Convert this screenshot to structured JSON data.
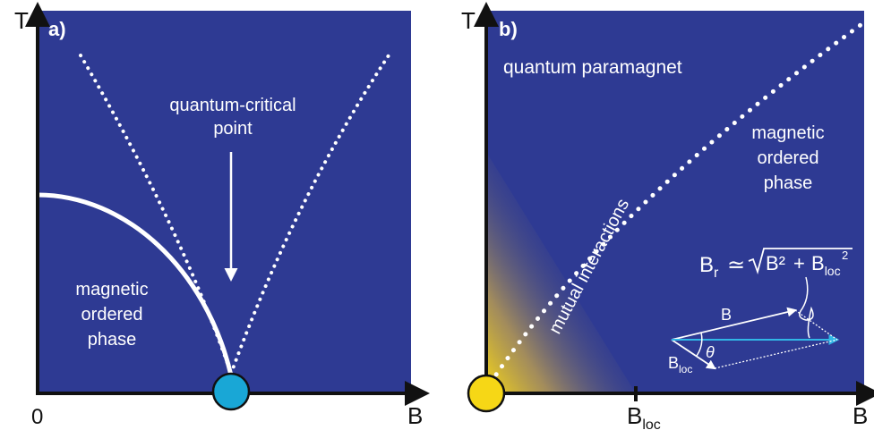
{
  "colors": {
    "panel_bg": "#2e3a93",
    "axis": "#111111",
    "text_on_panel": "#ffffff",
    "qcp_marker": "#19a7d6",
    "origin_marker": "#f6d716",
    "glow": "#f2d51a",
    "vector_b_r": "#31b7e6"
  },
  "panel_a": {
    "tag": "a)",
    "y_axis_label": "T",
    "x_axis_label": "B",
    "origin_label": "0",
    "arrow_label_line1": "quantum-critical",
    "arrow_label_line2": "point",
    "phase_label_line1": "magnetic",
    "phase_label_line2": "ordered",
    "phase_label_line3": "phase"
  },
  "panel_b": {
    "tag": "b)",
    "y_axis_label": "T",
    "x_axis_label": "B",
    "tick_label_main": "B",
    "tick_label_sub": "loc",
    "region_label": "quantum paramagnet",
    "phase_label_line1": "magnetic",
    "phase_label_line2": "ordered",
    "phase_label_line3": "phase",
    "boundary_label": "mutual interactions",
    "formula": {
      "lhs_main": "B",
      "lhs_sub": "r",
      "approx": "≃",
      "rad_term1": "B²",
      "plus": "+",
      "rad_term2_main": "B",
      "rad_term2_sub": "loc",
      "rad_term2_sup": "2"
    },
    "vector_label_b": "B",
    "vector_label_bloc_main": "B",
    "vector_label_bloc_sub": "loc",
    "angle_label": "θ"
  }
}
